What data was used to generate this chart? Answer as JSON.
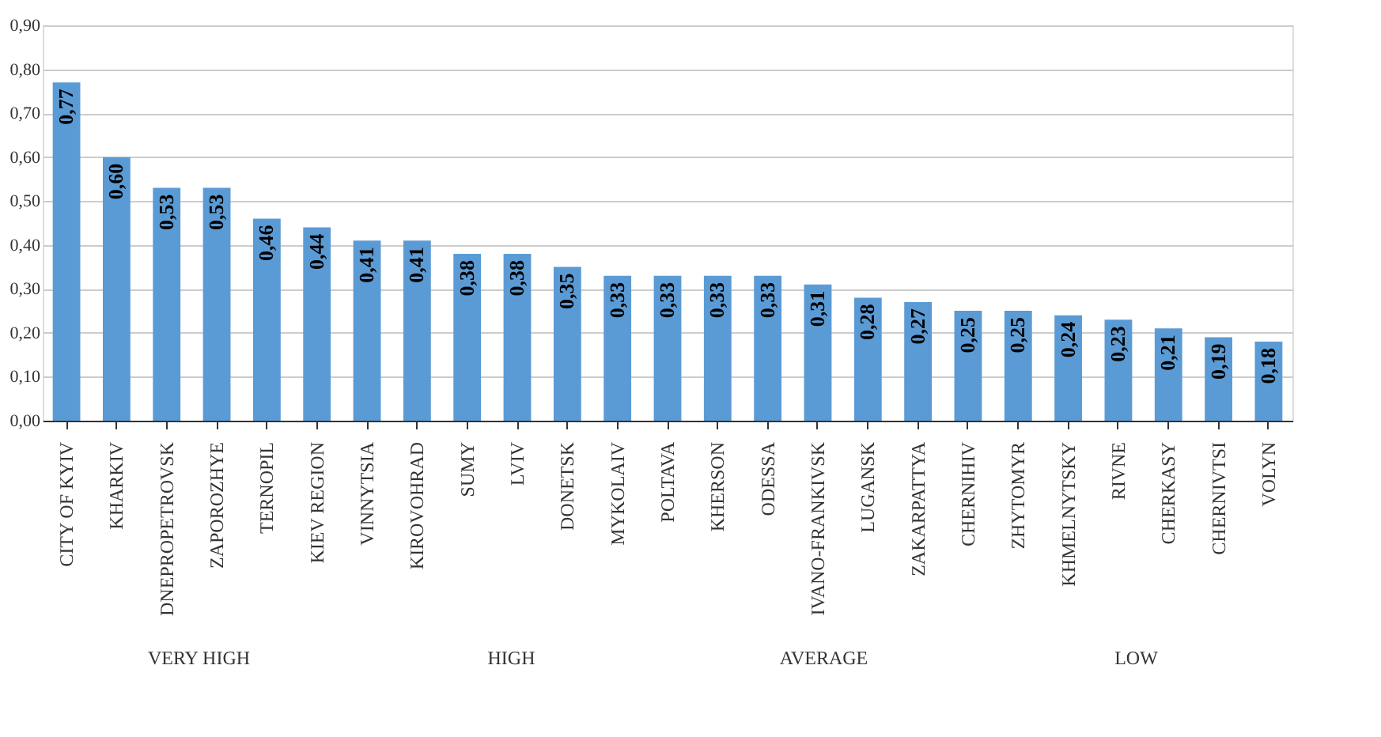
{
  "chart_data": {
    "type": "bar",
    "categories": [
      "CITY OF KYIV",
      "KHARKIV",
      "DNEPROPETROVSK",
      "ZAPOROZHYE",
      "TERNOPIL",
      "KIEV REGION",
      "VINNYTSIA",
      "KIROVOHRAD",
      "SUMY",
      "LVIV",
      "DONETSK",
      "MYKOLAIV",
      "POLTAVA",
      "KHERSON",
      "ODESSA",
      "IVANO-FRANKIVSK",
      "LUGANSK",
      "ZAKARPATTYA",
      "CHERNIHIV",
      "ZHYTOMYR",
      "KHMELNYTSKY",
      "RIVNE",
      "CHERKASY",
      "CHERNIVTSI",
      "VOLYN"
    ],
    "values": [
      0.77,
      0.6,
      0.53,
      0.53,
      0.46,
      0.44,
      0.41,
      0.41,
      0.38,
      0.38,
      0.35,
      0.33,
      0.33,
      0.33,
      0.33,
      0.31,
      0.28,
      0.27,
      0.25,
      0.25,
      0.24,
      0.23,
      0.21,
      0.19,
      0.18
    ],
    "value_labels": [
      "0,77",
      "0,60",
      "0,53",
      "0,53",
      "0,46",
      "0,44",
      "0,41",
      "0,41",
      "0,38",
      "0,38",
      "0,35",
      "0,33",
      "0,33",
      "0,33",
      "0,33",
      "0,31",
      "0,28",
      "0,27",
      "0,25",
      "0,25",
      "0,24",
      "0,23",
      "0,21",
      "0,19",
      "0,18"
    ],
    "color": "#5b9bd5",
    "ylim": [
      0,
      0.9
    ],
    "yticks": [
      {
        "value": 0,
        "label": "0,00"
      },
      {
        "value": 0.1,
        "label": "0,10"
      },
      {
        "value": 0.2,
        "label": "0,20"
      },
      {
        "value": 0.3,
        "label": "0,30"
      },
      {
        "value": 0.4,
        "label": "0,40"
      },
      {
        "value": 0.5,
        "label": "0,50"
      },
      {
        "value": 0.6,
        "label": "0,60"
      },
      {
        "value": 0.7,
        "label": "0,70"
      },
      {
        "value": 0.8,
        "label": "0,80"
      },
      {
        "value": 0.9,
        "label": "0,90"
      }
    ],
    "grid": "y",
    "annotations": [
      "VERY HIGH",
      "HIGH",
      "AVERAGE",
      "LOW"
    ]
  }
}
